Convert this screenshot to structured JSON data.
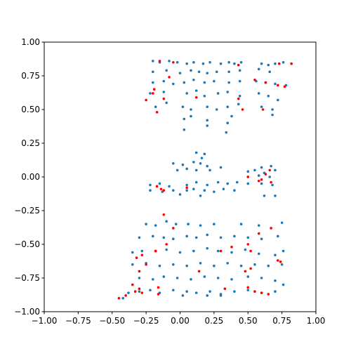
{
  "chart_data": {
    "type": "scatter",
    "xlim": [
      -1,
      1
    ],
    "ylim": [
      -1,
      1
    ],
    "xticks": [
      {
        "value": -1,
        "label": "−1.00"
      },
      {
        "value": -0.75,
        "label": "−0.75"
      },
      {
        "value": -0.5,
        "label": "−0.50"
      },
      {
        "value": -0.25,
        "label": "−0.25"
      },
      {
        "value": 0,
        "label": "0.00"
      },
      {
        "value": 0.25,
        "label": "0.25"
      },
      {
        "value": 0.5,
        "label": "0.50"
      },
      {
        "value": 0.75,
        "label": "0.75"
      },
      {
        "value": 1,
        "label": "1.00"
      }
    ],
    "yticks": [
      {
        "value": -1,
        "label": "−1.00"
      },
      {
        "value": -0.75,
        "label": "−0.75"
      },
      {
        "value": -0.5,
        "label": "−0.50"
      },
      {
        "value": -0.25,
        "label": "−0.25"
      },
      {
        "value": 0,
        "label": "0.00"
      },
      {
        "value": 0.25,
        "label": "0.25"
      },
      {
        "value": 0.5,
        "label": "0.50"
      },
      {
        "value": 0.75,
        "label": "0.75"
      },
      {
        "value": 1,
        "label": "1.00"
      }
    ],
    "series": [
      {
        "color": "#1f77b4",
        "x": [
          -0.2,
          -0.15,
          -0.08,
          -0.02,
          0.05,
          0.1,
          0.17,
          0.22,
          0.3,
          0.36,
          0.4,
          0.45,
          0.6,
          0.65,
          0.7,
          0.76,
          -0.2,
          -0.1,
          0.0,
          0.08,
          0.14,
          0.2,
          0.27,
          0.36,
          0.44,
          0.58,
          0.66,
          -0.2,
          -0.12,
          -0.05,
          0.03,
          0.1,
          0.18,
          0.25,
          0.36,
          0.44,
          0.56,
          0.63,
          0.7,
          0.78,
          -0.22,
          -0.12,
          0.05,
          0.12,
          0.18,
          0.28,
          0.35,
          0.44,
          0.58,
          0.65,
          0.72,
          -0.18,
          -0.1,
          0.02,
          0.08,
          0.2,
          0.27,
          0.35,
          0.43,
          0.6,
          0.68,
          0.03,
          0.08,
          0.2,
          0.35,
          0.38,
          0.68,
          0.03,
          0.2,
          0.34,
          0.12,
          0.18,
          0.16,
          -0.05,
          0.02,
          0.1,
          0.15,
          0.2,
          0.3,
          0.6,
          0.67,
          -0.02,
          0.05,
          0.12,
          0.22,
          0.5,
          0.55,
          0.62,
          0.7,
          0.5,
          0.58,
          0.66,
          -0.22,
          -0.15,
          -0.08,
          0.05,
          0.12,
          0.2,
          0.28,
          0.35,
          0.42,
          0.5,
          0.6,
          0.68,
          -0.22,
          -0.13,
          -0.05,
          0.05,
          0.1,
          0.18,
          0.25,
          0.32,
          0.4,
          0.0,
          0.15,
          0.62,
          0.7,
          -0.25,
          -0.18,
          -0.1,
          -0.03,
          0.06,
          0.15,
          0.25,
          0.45,
          0.58,
          0.75,
          -0.3,
          -0.2,
          -0.12,
          -0.05,
          0.05,
          0.12,
          0.2,
          0.3,
          0.4,
          0.5,
          0.6,
          0.72,
          -0.35,
          -0.28,
          -0.18,
          -0.1,
          0.0,
          0.1,
          0.2,
          0.28,
          0.38,
          0.48,
          0.58,
          0.7,
          0.76,
          -0.35,
          -0.25,
          -0.15,
          -0.05,
          0.05,
          0.15,
          0.25,
          0.35,
          0.45,
          0.55,
          0.65,
          0.75,
          -0.3,
          -0.2,
          -0.12,
          -0.02,
          0.08,
          0.18,
          0.28,
          0.38,
          0.5,
          0.6,
          0.7,
          -0.38,
          -0.3,
          -0.22,
          -0.15,
          -0.05,
          0.05,
          0.12,
          0.22,
          0.3,
          0.4,
          0.5,
          0.6,
          0.7,
          0.76,
          -0.42,
          0.02,
          0.2,
          0.3
        ],
        "y": [
          0.86,
          0.85,
          0.86,
          0.85,
          0.84,
          0.85,
          0.84,
          0.85,
          0.84,
          0.85,
          0.84,
          0.85,
          0.84,
          0.83,
          0.84,
          0.85,
          0.78,
          0.79,
          0.77,
          0.79,
          0.78,
          0.77,
          0.78,
          0.78,
          0.79,
          0.8,
          0.78,
          0.7,
          0.71,
          0.69,
          0.7,
          0.72,
          0.7,
          0.71,
          0.7,
          0.71,
          0.71,
          0.7,
          0.69,
          0.68,
          0.62,
          0.63,
          0.62,
          0.64,
          0.6,
          0.62,
          0.63,
          0.6,
          0.62,
          0.6,
          0.57,
          0.52,
          0.55,
          0.52,
          0.5,
          0.52,
          0.5,
          0.52,
          0.54,
          0.52,
          0.5,
          0.43,
          0.45,
          0.42,
          0.4,
          0.45,
          0.46,
          0.35,
          0.38,
          0.33,
          0.18,
          0.17,
          0.14,
          0.1,
          0.09,
          0.11,
          0.1,
          0.08,
          0.07,
          0.07,
          0.08,
          0.05,
          0.06,
          0.05,
          0.05,
          0.04,
          0.05,
          0.03,
          0.05,
          0.0,
          0.01,
          0.0,
          -0.06,
          -0.05,
          -0.07,
          -0.06,
          -0.04,
          -0.06,
          -0.04,
          -0.05,
          -0.04,
          -0.05,
          -0.05,
          -0.06,
          -0.1,
          -0.11,
          -0.1,
          -0.1,
          -0.09,
          -0.1,
          -0.11,
          -0.09,
          -0.1,
          -0.13,
          -0.14,
          -0.14,
          -0.14,
          -0.35,
          -0.36,
          -0.33,
          -0.35,
          -0.35,
          -0.36,
          -0.35,
          -0.35,
          -0.36,
          -0.34,
          -0.45,
          -0.44,
          -0.45,
          -0.46,
          -0.44,
          -0.45,
          -0.43,
          -0.45,
          -0.44,
          -0.45,
          -0.46,
          -0.44,
          -0.56,
          -0.55,
          -0.55,
          -0.54,
          -0.56,
          -0.55,
          -0.53,
          -0.55,
          -0.56,
          -0.54,
          -0.57,
          -0.58,
          -0.55,
          -0.65,
          -0.64,
          -0.66,
          -0.65,
          -0.66,
          -0.64,
          -0.66,
          -0.64,
          -0.66,
          -0.65,
          -0.66,
          -0.65,
          -0.75,
          -0.76,
          -0.74,
          -0.75,
          -0.76,
          -0.74,
          -0.75,
          -0.76,
          -0.74,
          -0.75,
          -0.77,
          -0.86,
          -0.85,
          -0.84,
          -0.86,
          -0.84,
          -0.85,
          -0.86,
          -0.85,
          -0.87,
          -0.85,
          -0.84,
          -0.86,
          -0.85,
          -0.8,
          -0.9,
          -0.88,
          -0.88,
          -0.88
        ]
      },
      {
        "color": "#ff0000",
        "x": [
          -0.15,
          -0.05,
          0.43,
          0.73,
          0.82,
          -0.19,
          -0.2,
          -0.08,
          -0.12,
          -0.25,
          -0.17,
          0.12,
          0.43,
          0.46,
          0.55,
          0.63,
          0.72,
          0.77,
          0.61,
          -0.17,
          -0.14,
          -0.12,
          0.5,
          0.6,
          0.63,
          0.66,
          0.67,
          0.58,
          0.05,
          -0.12,
          -0.05,
          -0.1,
          -0.18,
          -0.32,
          -0.28,
          -0.25,
          -0.3,
          -0.35,
          -0.33,
          -0.3,
          -0.28,
          -0.4,
          -0.45,
          -0.16,
          -0.16,
          0.3,
          0.38,
          0.5,
          0.52,
          0.48,
          0.52,
          0.72,
          0.74,
          0.5,
          0.55,
          0.6,
          0.65,
          0.58,
          0.67,
          0.33,
          0.14
        ],
        "y": [
          0.86,
          0.85,
          0.83,
          0.84,
          0.84,
          0.65,
          0.62,
          0.74,
          0.58,
          0.57,
          0.48,
          0.59,
          0.58,
          0.5,
          0.72,
          0.7,
          0.68,
          0.67,
          0.5,
          -0.07,
          -0.09,
          -0.1,
          0.0,
          -0.02,
          0.02,
          0.05,
          -0.04,
          -0.03,
          -0.08,
          -0.28,
          -0.38,
          -0.5,
          -0.55,
          -0.6,
          -0.58,
          -0.65,
          -0.7,
          -0.8,
          -0.85,
          -0.83,
          -0.86,
          -0.88,
          -0.9,
          -0.87,
          -0.82,
          -0.55,
          -0.52,
          -0.5,
          -0.55,
          -0.7,
          -0.68,
          -0.62,
          -0.63,
          -0.82,
          -0.85,
          -0.86,
          -0.87,
          -0.42,
          -0.38,
          -0.83,
          -0.7
        ]
      }
    ]
  }
}
